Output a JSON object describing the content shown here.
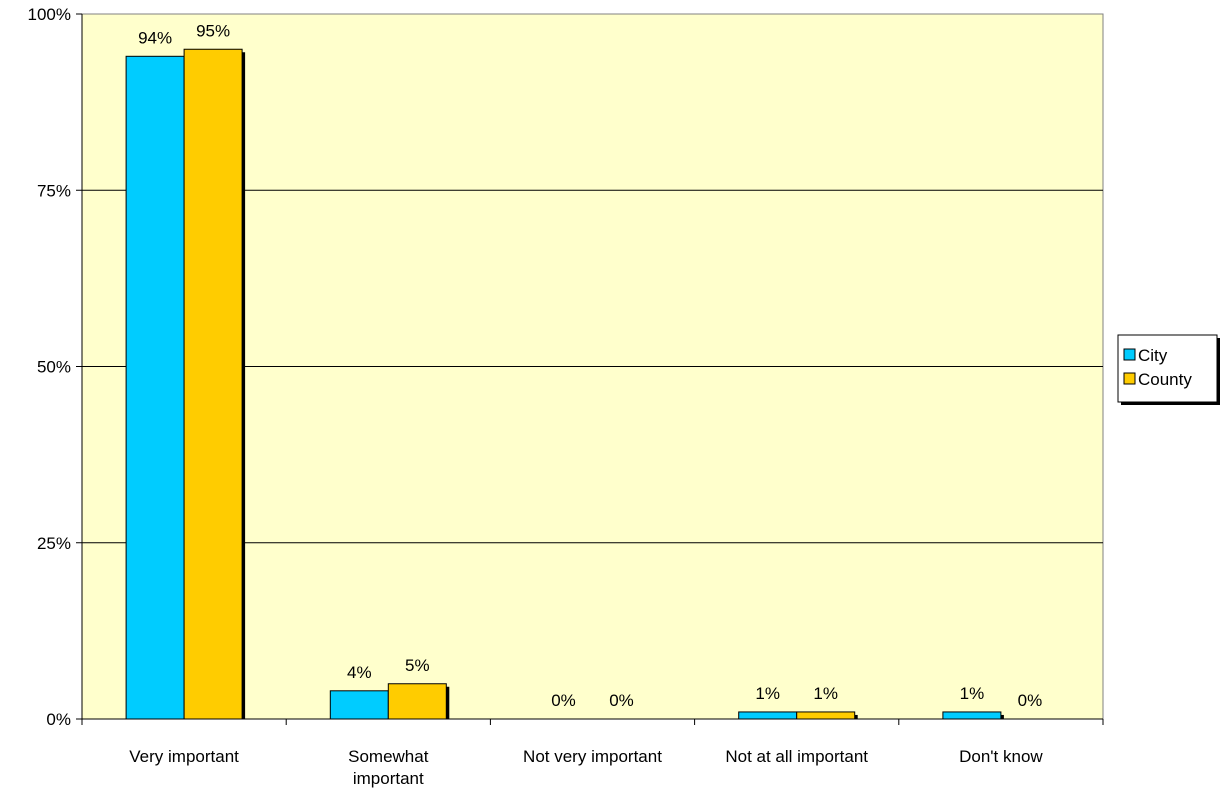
{
  "chart_data": {
    "type": "bar",
    "title": "",
    "xlabel": "",
    "ylabel": "",
    "categories": [
      [
        "Very important"
      ],
      [
        "Somewhat",
        "important"
      ],
      [
        "Not very important"
      ],
      [
        "Not at all important"
      ],
      [
        "Don't know"
      ]
    ],
    "series": [
      {
        "name": "City",
        "color": "#00ccff",
        "values": [
          94,
          4,
          0,
          1,
          1
        ],
        "labels": [
          "94%",
          "4%",
          "0%",
          "1%",
          "1%"
        ]
      },
      {
        "name": "County",
        "color": "#ffcc00",
        "values": [
          95,
          5,
          0,
          1,
          0
        ],
        "labels": [
          "95%",
          "5%",
          "0%",
          "1%",
          "0%"
        ]
      }
    ],
    "ylim": [
      0,
      100
    ],
    "yticks": [
      0,
      25,
      50,
      75,
      100
    ],
    "ytick_labels": [
      "0%",
      "25%",
      "50%",
      "75%",
      "100%"
    ],
    "grid": true,
    "legend": "right",
    "plot_background": "#ffffcc"
  }
}
